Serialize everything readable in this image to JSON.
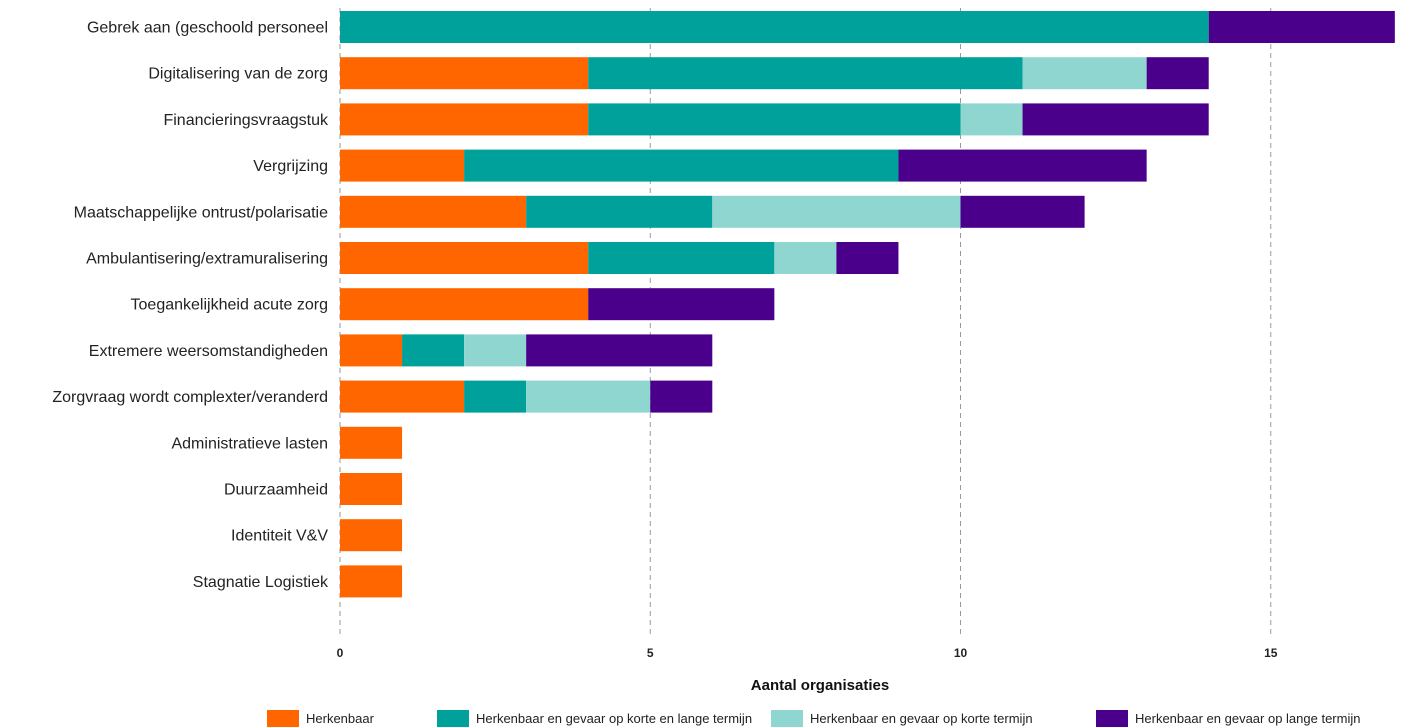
{
  "chart_data": {
    "type": "bar",
    "orientation": "horizontal",
    "stacked": true,
    "categories": [
      "Gebrek aan (geschoold personeel",
      "Digitalisering van de zorg",
      "Financieringsvraagstuk",
      "Vergrijzing",
      "Maatschappelijke ontrust/polarisatie",
      "Ambulantisering/extramuralisering",
      "Toegankelijkheid acute zorg",
      "Extremere weersomstandigheden",
      "Zorgvraag wordt complexter/veranderd",
      "Administratieve lasten",
      "Duurzaamheid",
      "Identiteit V&V",
      "Stagnatie Logistiek"
    ],
    "series": [
      {
        "name": "Herkenbaar",
        "color": "#ff6600",
        "values": [
          0,
          4,
          4,
          2,
          3,
          4,
          4,
          1,
          2,
          1,
          1,
          1,
          1
        ]
      },
      {
        "name": "Herkenbaar en gevaar op korte en lange termijn",
        "color": "#00a19a",
        "values": [
          14,
          7,
          6,
          7,
          3,
          3,
          0,
          1,
          1,
          0,
          0,
          0,
          0
        ]
      },
      {
        "name": "Herkenbaar en gevaar op korte termijn",
        "color": "#8fd5d0",
        "values": [
          0,
          2,
          1,
          0,
          4,
          1,
          0,
          1,
          2,
          0,
          0,
          0,
          0
        ]
      },
      {
        "name": "Herkenbaar en gevaar op lange termijn",
        "color": "#4b008c",
        "values": [
          3,
          1,
          3,
          4,
          2,
          1,
          3,
          3,
          1,
          0,
          0,
          0,
          0
        ]
      }
    ],
    "xlabel": "Aantal organisaties",
    "ylabel": "",
    "xlim": [
      0,
      17
    ],
    "xticks": [
      "0",
      "5",
      "10",
      "15"
    ],
    "xtick_values": [
      0,
      5,
      10,
      15
    ],
    "grid": "vertical dashed",
    "legend_position": "bottom"
  }
}
